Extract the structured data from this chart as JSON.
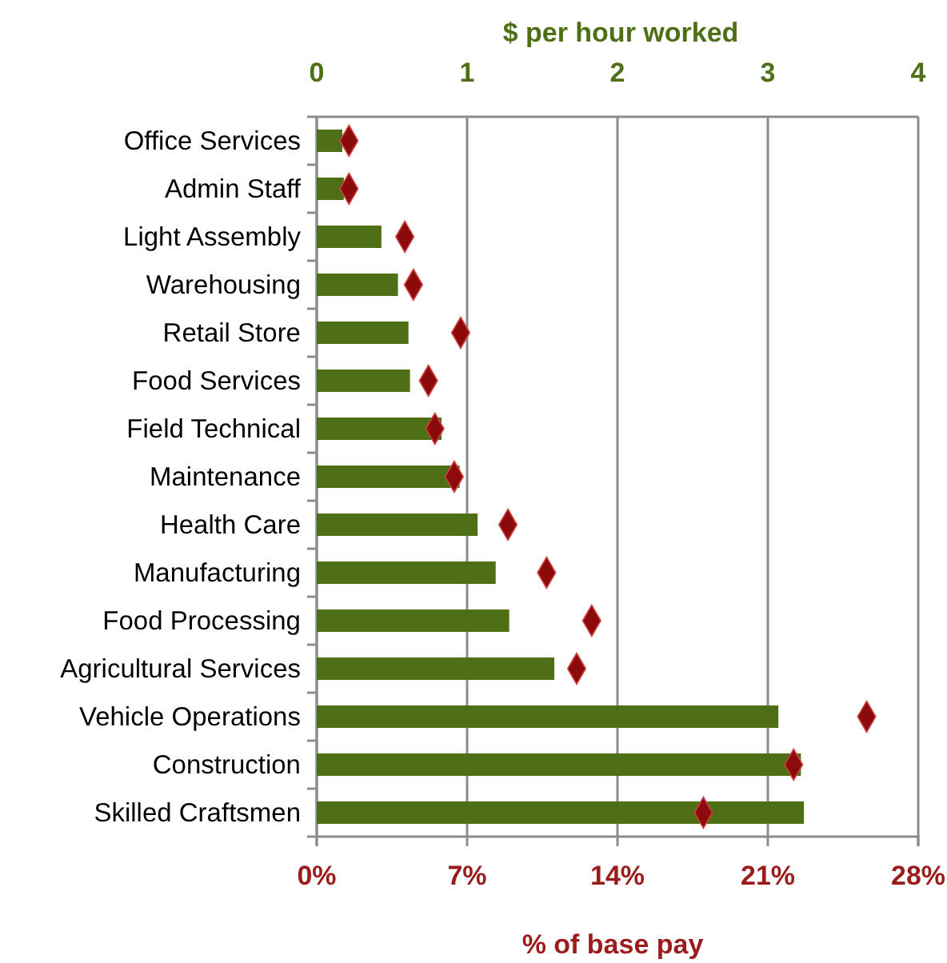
{
  "chart_data": {
    "type": "bar",
    "orientation": "horizontal",
    "xlabel": "% of base pay",
    "x2label": "$ per hour worked",
    "categories": [
      "Office Services",
      "Admin Staff",
      "Light Assembly",
      "Warehousing",
      "Retail Store",
      "Food Services",
      "Field Technical",
      "Maintenance",
      "Health Care",
      "Manufacturing",
      "Food Processing",
      "Agricultural Services",
      "Vehicle Operations",
      "Construction",
      "Skilled Craftsmen"
    ],
    "series": [
      {
        "axis": "x2",
        "color": "#4e6f16",
        "values": [
          0.17,
          0.18,
          0.43,
          0.54,
          0.61,
          0.62,
          0.83,
          0.95,
          1.07,
          1.19,
          1.28,
          1.58,
          3.07,
          3.22,
          3.24
        ]
      },
      {
        "type": "scatter",
        "marker": "diamond",
        "color": "#8b0a0a",
        "values": [
          1.5,
          1.5,
          4.1,
          4.5,
          6.7,
          5.2,
          5.5,
          6.4,
          8.9,
          10.7,
          12.8,
          12.1,
          25.6,
          22.2,
          18.0
        ]
      }
    ],
    "xlim": [
      0,
      28
    ],
    "xticks": [
      {
        "value": 0,
        "label": "0%"
      },
      {
        "value": 7,
        "label": "7%"
      },
      {
        "value": 14,
        "label": "14%"
      },
      {
        "value": 21,
        "label": "21%"
      },
      {
        "value": 28,
        "label": "28%"
      }
    ],
    "x2lim": [
      0,
      4
    ],
    "x2ticks": [
      0,
      1,
      2,
      3,
      4
    ],
    "grid": "x"
  }
}
